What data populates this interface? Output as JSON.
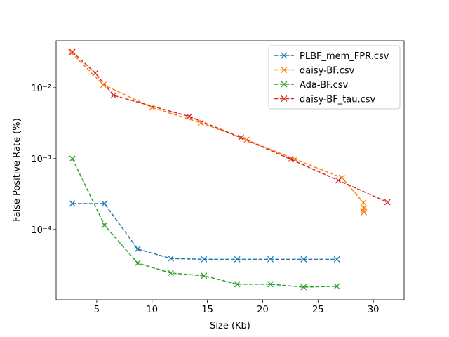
{
  "chart_data": {
    "type": "line",
    "xlabel": "Size (Kb)",
    "ylabel": "False Positive Rate (%)",
    "xlim": [
      1.33,
      32.78
    ],
    "xticks": [
      5,
      10,
      15,
      20,
      25,
      30
    ],
    "ylim": [
      1.02e-05,
      0.046
    ],
    "yscale": "log",
    "yticks": [
      {
        "value": 0.0001,
        "label": "10⁻⁴"
      },
      {
        "value": 0.001,
        "label": "10⁻³"
      },
      {
        "value": 0.01,
        "label": "10⁻²"
      }
    ],
    "legend": "upper right",
    "series": [
      {
        "name": "PLBF_mem_FPR.csv",
        "color": "#1f77b4",
        "x": [
          2.8,
          5.7,
          8.7,
          11.7,
          14.7,
          17.7,
          20.7,
          23.7,
          26.7
        ],
        "values": [
          0.000232,
          0.000232,
          5.3e-05,
          3.9e-05,
          3.8e-05,
          3.8e-05,
          3.8e-05,
          3.8e-05,
          3.8e-05
        ]
      },
      {
        "name": "daisy-BF.csv",
        "color": "#ff7f0e",
        "x": [
          2.7,
          5.6,
          10.0,
          14.4,
          18.55,
          22.9,
          27.15,
          29.1,
          29.15,
          29.1,
          29.15
        ],
        "values": [
          0.0313,
          0.011,
          0.00528,
          0.0032,
          0.00185,
          0.00098,
          0.00054,
          0.00024,
          0.0002,
          0.000185,
          0.000175
        ]
      },
      {
        "name": "Ada-BF.csv",
        "color": "#2ca02c",
        "x": [
          2.8,
          5.7,
          8.7,
          11.7,
          14.7,
          17.7,
          20.7,
          23.7,
          26.7
        ],
        "values": [
          0.001,
          0.000115,
          3.35e-05,
          2.43e-05,
          2.22e-05,
          1.69e-05,
          1.69e-05,
          1.54e-05,
          1.58e-05
        ]
      },
      {
        "name": "daisy-BF_tau.csv",
        "color": "#d62728",
        "x": [
          2.8,
          4.87,
          6.52,
          13.36,
          18.04,
          22.53,
          26.84,
          31.27
        ],
        "values": [
          0.032,
          0.0161,
          0.0078,
          0.00393,
          0.00198,
          0.00098,
          0.000493,
          0.000243
        ]
      }
    ]
  }
}
